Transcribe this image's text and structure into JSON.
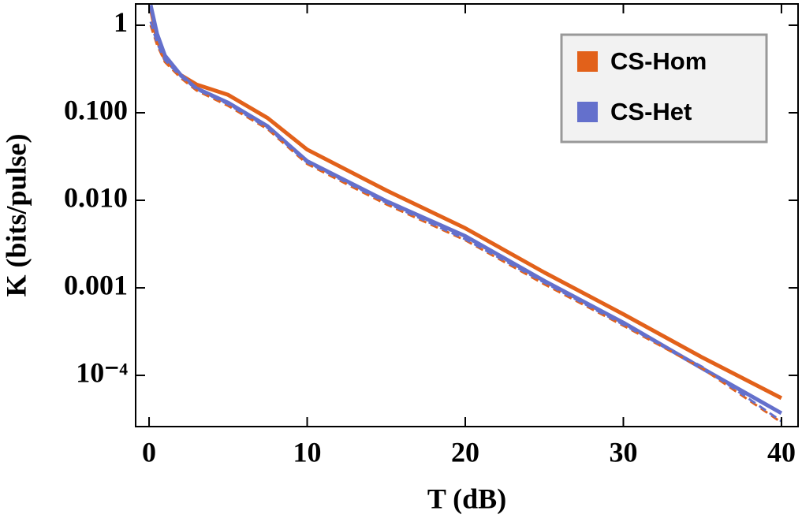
{
  "chart_data": {
    "type": "line",
    "xlabel": "T (dB)",
    "ylabel": "K (bits/pulse)",
    "x": [
      0.1,
      0.5,
      1,
      2,
      3,
      5,
      7.5,
      10,
      15,
      20,
      25,
      30,
      35,
      40
    ],
    "series": [
      {
        "name": "CS-Hom",
        "color": "#e2611a",
        "style": "solid",
        "values": [
          1.6,
          0.69,
          0.41,
          0.27,
          0.21,
          0.16,
          0.087,
          0.038,
          0.013,
          0.0048,
          0.0015,
          0.0005,
          0.00016,
          5.5e-05
        ]
      },
      {
        "name": "CS-Het",
        "color": "#6470cc",
        "style": "solid",
        "values": [
          1.7,
          0.8,
          0.45,
          0.27,
          0.19,
          0.13,
          0.07,
          0.028,
          0.0098,
          0.0039,
          0.0012,
          0.0004,
          0.00012,
          3.7e-05
        ]
      },
      {
        "color": "#e2611a",
        "style": "dashed",
        "values": [
          1.0,
          0.6,
          0.38,
          0.25,
          0.18,
          0.12,
          0.065,
          0.026,
          0.009,
          0.0035,
          0.0011,
          0.00037,
          0.00012,
          2.9e-05
        ]
      },
      {
        "color": "#6470cc",
        "style": "dashed",
        "values": [
          1.1,
          0.63,
          0.4,
          0.26,
          0.185,
          0.125,
          0.067,
          0.027,
          0.0094,
          0.0036,
          0.00115,
          0.00038,
          0.000125,
          3e-05
        ]
      }
    ],
    "xlim": [
      -0.85,
      41.05
    ],
    "xticks": [
      0,
      10,
      20,
      30,
      40
    ],
    "ylim": [
      2.6e-05,
      1.75
    ],
    "log_y": true,
    "yticks": [
      1,
      {
        "value": 0.1,
        "label": "0.100"
      },
      {
        "value": 0.01,
        "label": "0.010"
      },
      0.001,
      {
        "value": 0.0001,
        "label": "10⁻⁴"
      }
    ],
    "legend": "upper right"
  }
}
